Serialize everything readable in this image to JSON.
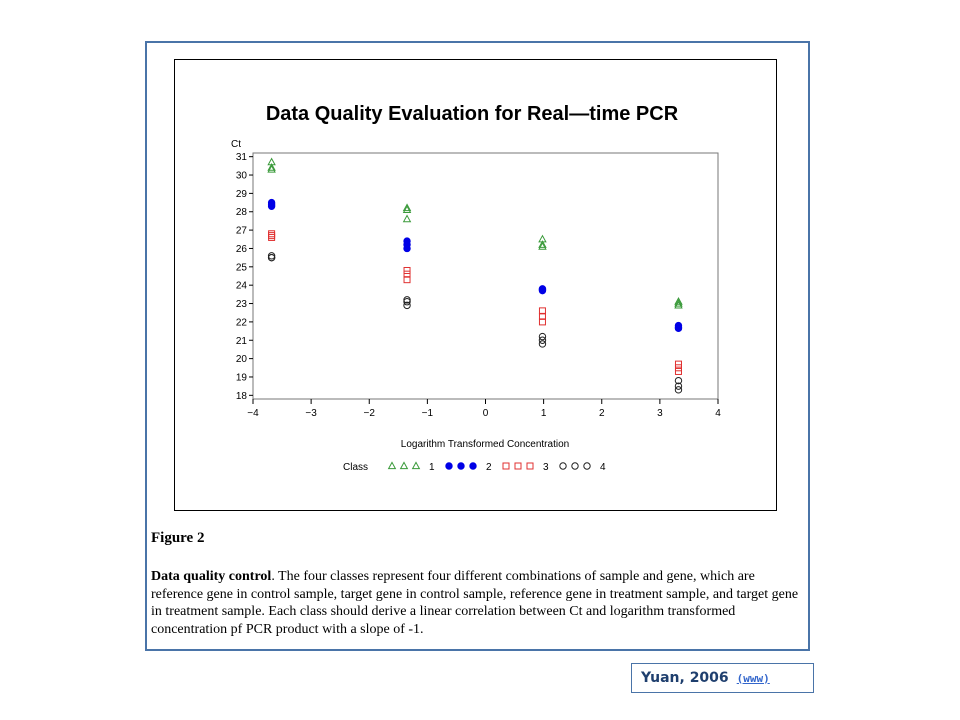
{
  "chart_data": {
    "type": "scatter",
    "title": "Data Quality Evaluation for Real—time PCR",
    "xlabel": "Logarithm Transformed Concentration",
    "ylabel": "Ct",
    "xlim": [
      -4,
      4
    ],
    "ylim": [
      17.8,
      31.2
    ],
    "xticks": [
      -4,
      -3,
      -2,
      -1,
      0,
      1,
      2,
      3,
      4
    ],
    "xtick_labels": [
      "−4",
      "−3",
      "−2",
      "−1",
      "0",
      "1",
      "2",
      "3",
      "4"
    ],
    "yticks": [
      18,
      19,
      20,
      21,
      22,
      23,
      24,
      25,
      26,
      27,
      28,
      29,
      30,
      31
    ],
    "grid": false,
    "legend": {
      "title": "Class",
      "placement": "bottom",
      "entries": [
        {
          "label": "1",
          "marker": "triangle",
          "color": "#3a9a3a"
        },
        {
          "label": "2",
          "marker": "filled-circle",
          "color": "#0000e6"
        },
        {
          "label": "3",
          "marker": "square",
          "color": "#e03030"
        },
        {
          "label": "4",
          "marker": "circle",
          "color": "#222222"
        }
      ]
    },
    "series": [
      {
        "name": "1",
        "marker": "triangle",
        "color": "#3a9a3a",
        "points": [
          [
            -3.68,
            30.7
          ],
          [
            -3.68,
            30.4
          ],
          [
            -3.68,
            30.3
          ],
          [
            -1.35,
            28.2
          ],
          [
            -1.35,
            28.1
          ],
          [
            -1.35,
            27.6
          ],
          [
            0.98,
            26.5
          ],
          [
            0.98,
            26.2
          ],
          [
            0.98,
            26.1
          ],
          [
            3.32,
            23.1
          ],
          [
            3.32,
            23.0
          ],
          [
            3.32,
            22.9
          ]
        ]
      },
      {
        "name": "2",
        "marker": "filled-circle",
        "color": "#0000e6",
        "points": [
          [
            -3.68,
            28.5
          ],
          [
            -3.68,
            28.4
          ],
          [
            -3.68,
            28.3
          ],
          [
            -1.35,
            26.4
          ],
          [
            -1.35,
            26.2
          ],
          [
            -1.35,
            26.0
          ],
          [
            0.98,
            23.8
          ],
          [
            0.98,
            23.75
          ],
          [
            0.98,
            23.7
          ],
          [
            3.32,
            21.8
          ],
          [
            3.32,
            21.7
          ],
          [
            3.32,
            21.65
          ]
        ]
      },
      {
        "name": "3",
        "marker": "square",
        "color": "#e03030",
        "points": [
          [
            -3.68,
            26.8
          ],
          [
            -3.68,
            26.7
          ],
          [
            -3.68,
            26.6
          ],
          [
            -1.35,
            24.8
          ],
          [
            -1.35,
            24.6
          ],
          [
            -1.35,
            24.3
          ],
          [
            0.98,
            22.6
          ],
          [
            0.98,
            22.3
          ],
          [
            0.98,
            22.0
          ],
          [
            3.32,
            19.7
          ],
          [
            3.32,
            19.5
          ],
          [
            3.32,
            19.3
          ]
        ]
      },
      {
        "name": "4",
        "marker": "circle",
        "color": "#222222",
        "points": [
          [
            -3.68,
            25.6
          ],
          [
            -3.68,
            25.5
          ],
          [
            -3.68,
            25.5
          ],
          [
            -1.35,
            23.2
          ],
          [
            -1.35,
            23.1
          ],
          [
            -1.35,
            22.9
          ],
          [
            0.98,
            21.2
          ],
          [
            0.98,
            21.0
          ],
          [
            0.98,
            20.8
          ],
          [
            3.32,
            18.8
          ],
          [
            3.32,
            18.5
          ],
          [
            3.32,
            18.3
          ]
        ]
      }
    ]
  },
  "figure": {
    "label": "Figure 2",
    "caption_bold": "Data quality control",
    "caption_text": ". The four classes represent four different combinations of sample and gene, which are reference gene in control sample, target gene in control sample, reference gene in treatment sample, and target gene in treatment sample. Each class should derive a linear correlation between Ct and logarithm transformed concentration pf PCR product with a slope of -1."
  },
  "citation": {
    "text": "Yuan, 2006",
    "link_text": "(www)"
  }
}
